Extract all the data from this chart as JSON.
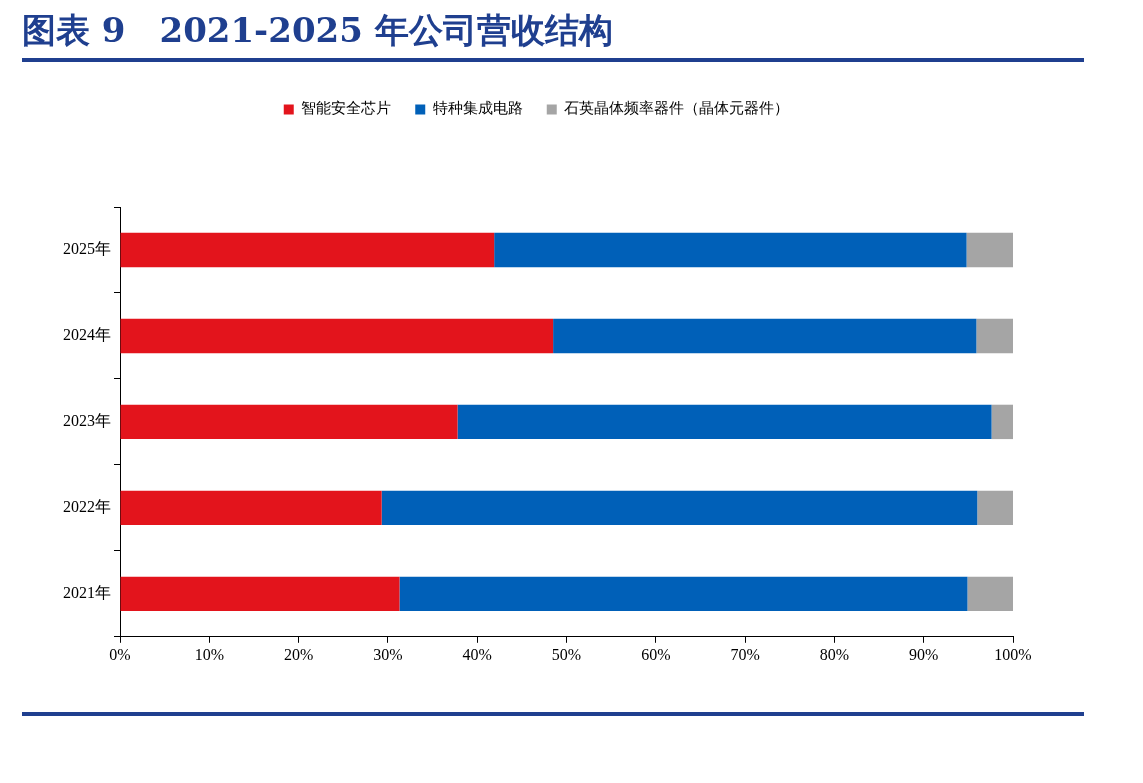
{
  "chart_data": {
    "type": "bar",
    "title": "图表 9　2021-2025 年公司营收结构",
    "orientation": "horizontal",
    "stacked": true,
    "categories": [
      "2025年",
      "2024年",
      "2023年",
      "2022年",
      "2021年"
    ],
    "series": [
      {
        "name": "智能安全芯片",
        "color": "#e3141c",
        "values": [
          41.9,
          48.5,
          37.8,
          29.3,
          31.3
        ]
      },
      {
        "name": "特种集成电路",
        "color": "#0060b8",
        "values": [
          52.9,
          47.4,
          59.8,
          66.7,
          63.6
        ]
      },
      {
        "name": "石英晶体频率器件（晶体元器件）",
        "color": "#a5a5a5",
        "values": [
          5.2,
          4.1,
          2.4,
          4.0,
          5.1
        ]
      }
    ],
    "xlim": [
      0,
      100
    ],
    "xticks": [
      {
        "value": 0,
        "label": "0%"
      },
      {
        "value": 10,
        "label": "10%"
      },
      {
        "value": 20,
        "label": "20%"
      },
      {
        "value": 30,
        "label": "30%"
      },
      {
        "value": 40,
        "label": "40%"
      },
      {
        "value": 50,
        "label": "50%"
      },
      {
        "value": 60,
        "label": "60%"
      },
      {
        "value": 70,
        "label": "70%"
      },
      {
        "value": 80,
        "label": "80%"
      },
      {
        "value": 90,
        "label": "90%"
      },
      {
        "value": 100,
        "label": "100%"
      }
    ],
    "grid": false,
    "legend": "top"
  }
}
